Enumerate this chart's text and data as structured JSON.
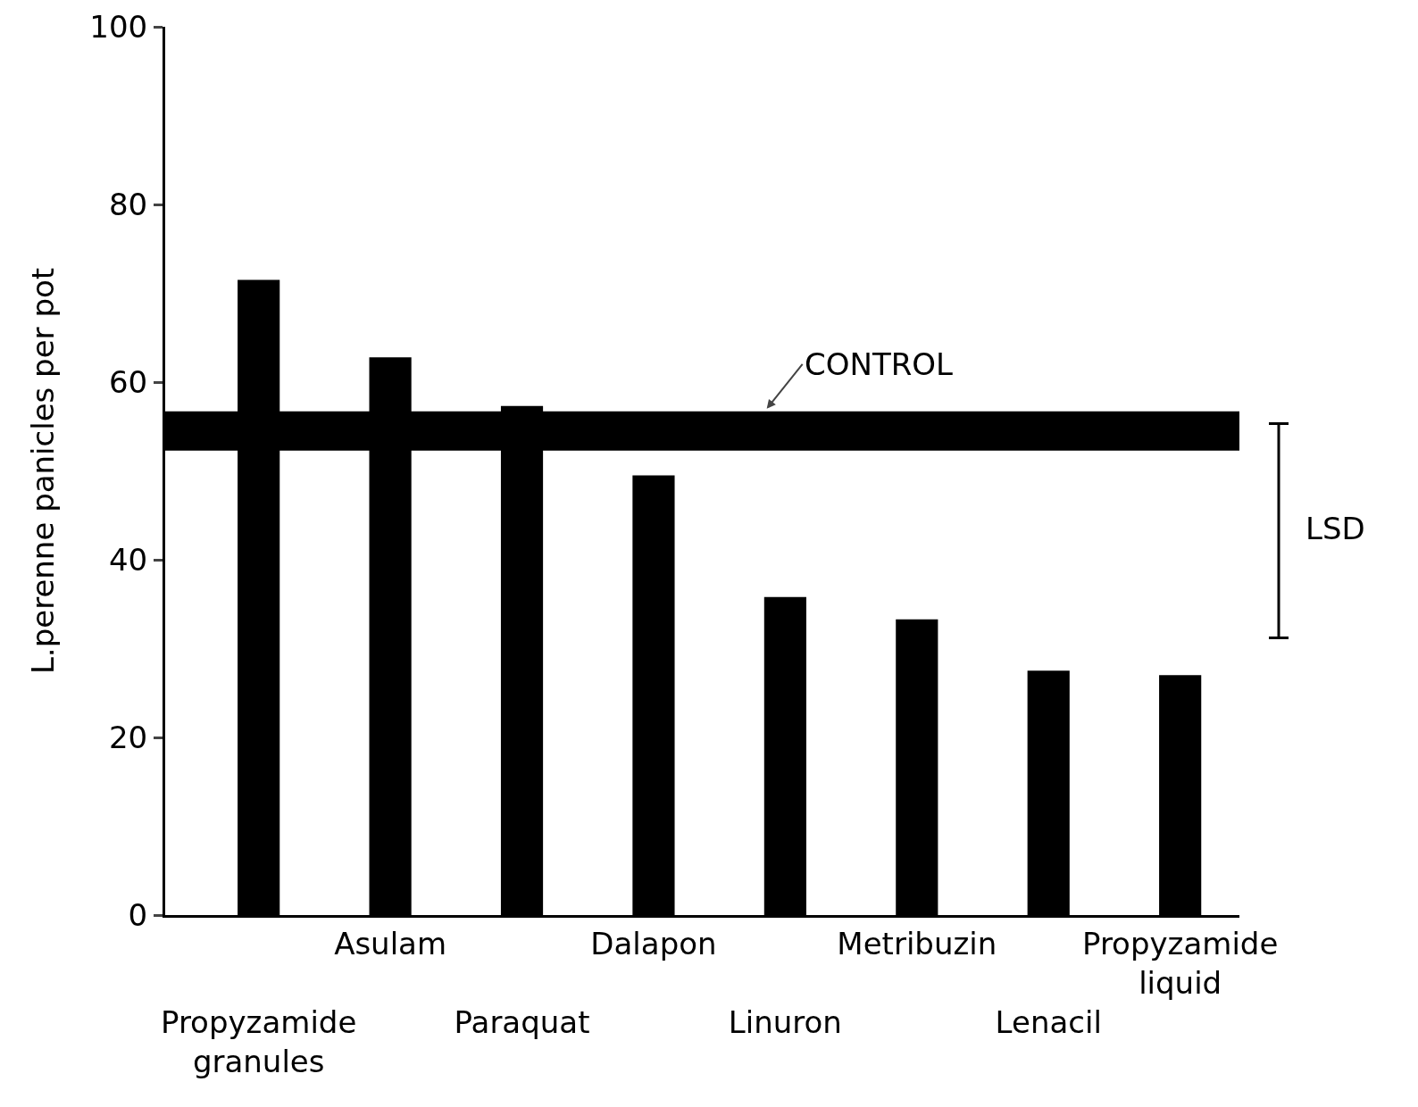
{
  "chart_data": {
    "type": "bar",
    "ylabel": "L.perenne panicles per pot",
    "categories": [
      "Propyzamide granules",
      "Asulam",
      "Paraquat",
      "Dalapon",
      "Linuron",
      "Metribuzin",
      "Lenacil",
      "Propyzamide liquid"
    ],
    "values": [
      71.5,
      62.8,
      57.3,
      49.5,
      35.8,
      33.3,
      27.5,
      27
    ],
    "color": "#000000",
    "ylim": [
      0,
      100
    ],
    "yticks": [
      0,
      20,
      40,
      60,
      80,
      100
    ],
    "grid": false,
    "ref_lines": [
      {
        "axis": "y",
        "value": 54.5,
        "label": "CONTROL",
        "color": "#000000"
      }
    ],
    "annotations": [
      "LSD"
    ]
  }
}
